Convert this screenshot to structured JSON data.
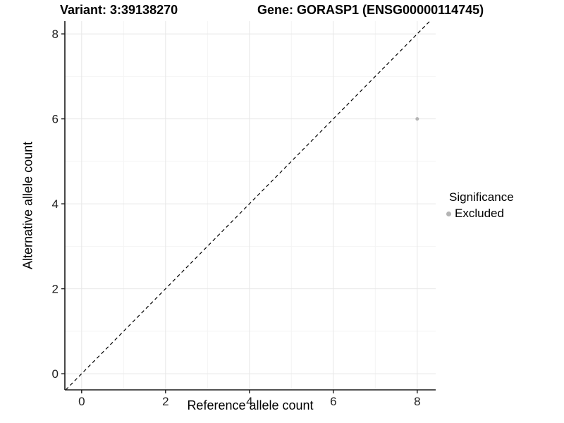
{
  "title_bar": {
    "variant": "Variant: 3:39138270",
    "gene": "Gene: GORASP1 (ENSG00000114745)"
  },
  "axes": {
    "x_label": "Reference allele count",
    "y_label": "Alternative allele count"
  },
  "legend": {
    "title": "Significance",
    "items": [
      {
        "label": "Excluded",
        "color": "#b4b4b4"
      }
    ]
  },
  "chart_data": {
    "type": "scatter",
    "title": "Variant: 3:39138270",
    "subtitle": "Gene: GORASP1 (ENSG00000114745)",
    "xlabel": "Reference allele count",
    "ylabel": "Alternative allele count",
    "xlim": [
      -0.4,
      8.44
    ],
    "ylim": [
      -0.38,
      8.3
    ],
    "x_ticks": [
      0,
      2,
      4,
      6,
      8
    ],
    "y_ticks": [
      0,
      2,
      4,
      6,
      8
    ],
    "x_minor_ticks": [
      1,
      3,
      5,
      7
    ],
    "y_minor_ticks": [
      1,
      3,
      5,
      7
    ],
    "grid": "major+minor",
    "legend_position": "right",
    "legend_title": "Significance",
    "series": [
      {
        "name": "Excluded",
        "color": "#b4b4b4",
        "points": [
          {
            "x": 8,
            "y": 6
          }
        ]
      }
    ],
    "reference_line": {
      "kind": "identity y=x",
      "style": "dashed",
      "color": "#000000"
    }
  },
  "colors": {
    "background": "#ffffff",
    "grid_major": "#e7e7e7",
    "grid_minor": "#f4f4f4",
    "axis_line": "#1a1a1a",
    "tick_text": "#1f1f1f",
    "point": "#b4b4b4"
  }
}
